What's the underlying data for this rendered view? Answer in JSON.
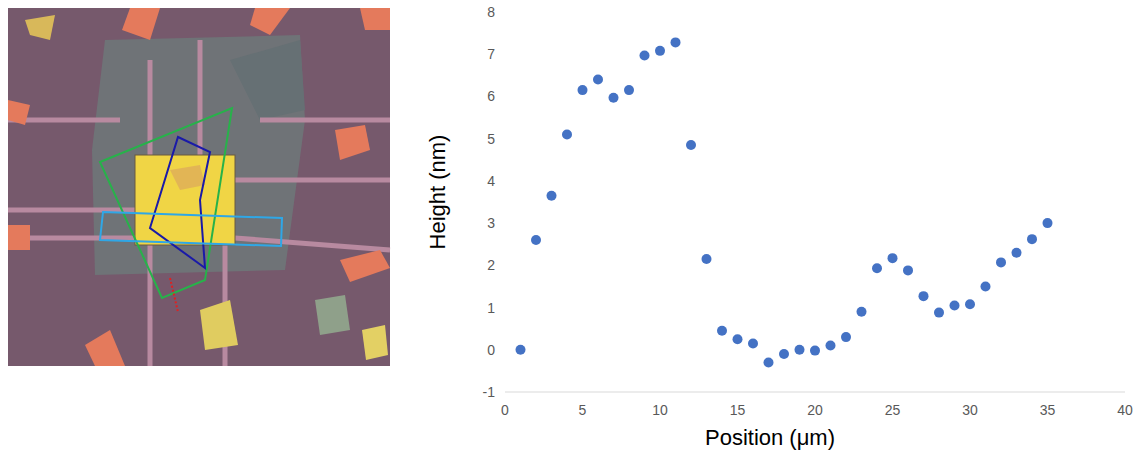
{
  "chart_data": {
    "type": "scatter",
    "x_label": "Position (μm)",
    "y_label": "Height (nm)",
    "x": [
      1,
      2,
      3,
      4,
      5,
      6,
      7,
      8,
      9,
      10,
      11,
      12,
      13,
      14,
      15,
      16,
      17,
      18,
      19,
      20,
      21,
      22,
      23,
      24,
      25,
      26,
      27,
      28,
      29,
      30,
      31,
      32,
      33,
      34,
      35
    ],
    "values": [
      0,
      2.6,
      3.65,
      5.1,
      6.15,
      6.4,
      5.97,
      6.15,
      6.97,
      7.08,
      7.28,
      4.85,
      2.15,
      0.45,
      0.25,
      0.15,
      -0.3,
      -0.1,
      0,
      -0.02,
      0.1,
      0.3,
      0.9,
      1.93,
      2.17,
      1.88,
      1.27,
      0.88,
      1.05,
      1.08,
      1.5,
      2.07,
      2.3,
      2.62,
      3.0
    ],
    "color": "#4472c4",
    "marker": "circle",
    "xlim": [
      0,
      40
    ],
    "xticks": [
      0,
      5,
      10,
      15,
      20,
      25,
      30,
      35,
      40
    ],
    "ylim": [
      -1,
      8
    ],
    "yticks": [
      -1,
      0,
      1,
      2,
      3,
      4,
      5,
      6,
      7,
      8
    ],
    "grid": false
  }
}
